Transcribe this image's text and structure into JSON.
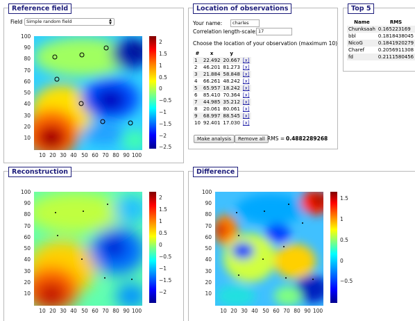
{
  "reference": {
    "legend": "Reference field",
    "field_label": "Field",
    "field_value": "Simple random field",
    "y_ticks": [
      "100",
      "90",
      "80",
      "70",
      "60",
      "50",
      "40",
      "30",
      "20",
      "10"
    ],
    "x_ticks": [
      "10",
      "20",
      "30",
      "40",
      "50",
      "60",
      "70",
      "80",
      "90",
      "100"
    ],
    "cbar_labels": [
      "2",
      "1.5",
      "1",
      "0.5",
      "0",
      "−0.5",
      "−1",
      "−1.5",
      "−2",
      "−2.5"
    ]
  },
  "location": {
    "legend": "Location of observations",
    "name_label": "Your name:",
    "name_value": "charles",
    "corr_label": "Correlation length-scale:",
    "corr_value": "17",
    "instruction": "Choose the location of your observation (maximum 10)",
    "headers": [
      "#",
      "x",
      "y"
    ],
    "rows": [
      {
        "n": "1",
        "x": "22.492",
        "y": "20.667",
        "del": "[x]"
      },
      {
        "n": "2",
        "x": "46.201",
        "y": "81.273",
        "del": "[x]"
      },
      {
        "n": "3",
        "x": "21.884",
        "y": "58.848",
        "del": "[x]"
      },
      {
        "n": "4",
        "x": "66.261",
        "y": "48.242",
        "del": "[x]"
      },
      {
        "n": "5",
        "x": "65.957",
        "y": "18.242",
        "del": "[x]"
      },
      {
        "n": "6",
        "x": "85.410",
        "y": "70.364",
        "del": "[x]"
      },
      {
        "n": "7",
        "x": "44.985",
        "y": "35.212",
        "del": "[x]"
      },
      {
        "n": "8",
        "x": "20.061",
        "y": "80.061",
        "del": "[x]"
      },
      {
        "n": "9",
        "x": "68.997",
        "y": "88.545",
        "del": "[x]"
      },
      {
        "n": "10",
        "x": "92.401",
        "y": "17.030",
        "del": "[x]"
      }
    ],
    "make_analysis": "Make analysis",
    "remove_all": "Remove all",
    "rms_label": "RMS =",
    "rms_value": "0.4882289268"
  },
  "top5": {
    "legend": "Top 5",
    "headers": [
      "Name",
      "RMS"
    ],
    "rows": [
      {
        "name": "Chunksaah",
        "rms": "0.165223169"
      },
      {
        "name": "bbl",
        "rms": "0.1818438045"
      },
      {
        "name": "NicoG",
        "rms": "0.1841920279"
      },
      {
        "name": "Charef",
        "rms": "0.2056911308"
      },
      {
        "name": "fd",
        "rms": "0.2111580456"
      }
    ]
  },
  "reconstruction": {
    "legend": "Reconstruction",
    "y_ticks": [
      "100",
      "90",
      "80",
      "70",
      "60",
      "50",
      "40",
      "30",
      "20",
      "10"
    ],
    "x_ticks": [
      "10",
      "20",
      "30",
      "40",
      "50",
      "60",
      "70",
      "80",
      "90",
      "100"
    ],
    "cbar_labels": [
      "2",
      "1.5",
      "1",
      "0.5",
      "0",
      "−0.5",
      "−1",
      "−1.5",
      "−2"
    ]
  },
  "difference": {
    "legend": "Difference",
    "y_ticks": [
      "100",
      "90",
      "80",
      "70",
      "60",
      "50",
      "40",
      "30",
      "20",
      "10"
    ],
    "x_ticks": [
      "10",
      "20",
      "30",
      "40",
      "50",
      "60",
      "70",
      "80",
      "90",
      "100"
    ],
    "cbar_labels": [
      "1.5",
      "1",
      "0.5",
      "0",
      "−0.5"
    ]
  },
  "colors": {
    "jet_low": "#00008f",
    "jet_high": "#800000",
    "legend_blue": "#1c1c7a"
  }
}
